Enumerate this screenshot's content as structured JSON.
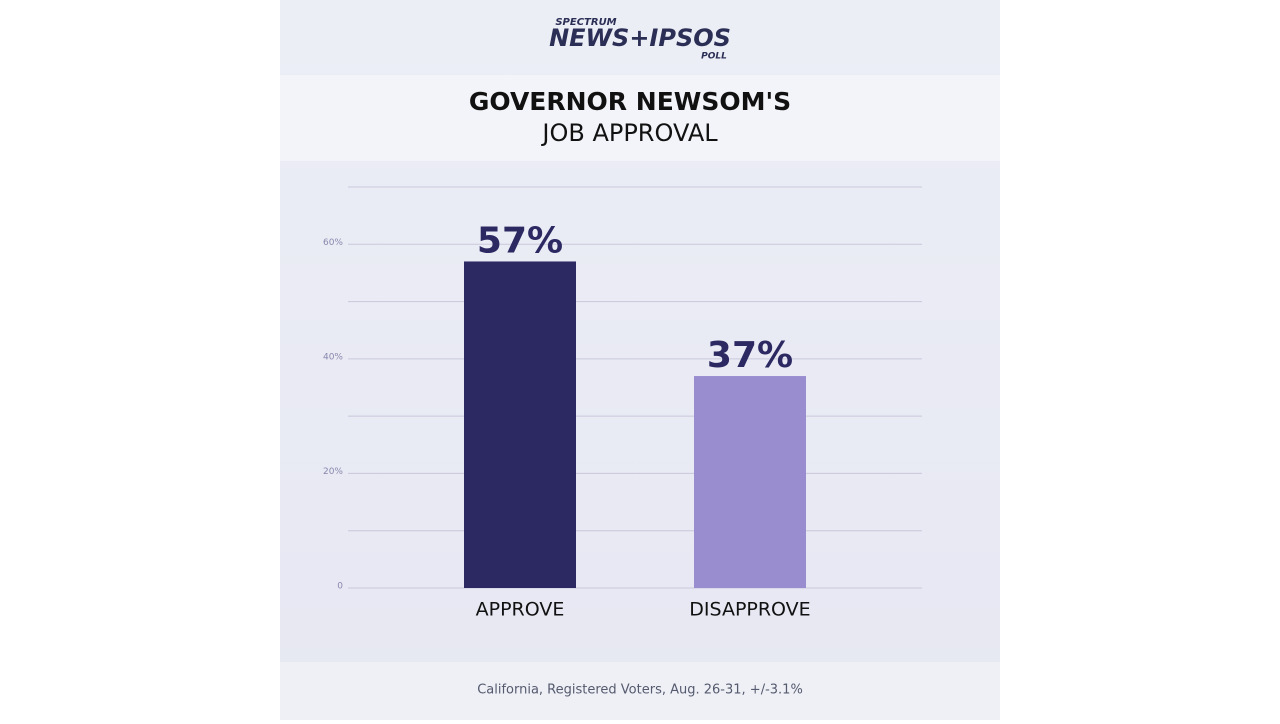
{
  "brand": {
    "top": "SPECTRUM",
    "main": "NEWS+IPSOS",
    "sub": "POLL"
  },
  "chart_data": {
    "type": "bar",
    "title": "GOVERNOR NEWSOM'S",
    "subtitle": "JOB APPROVAL",
    "categories": [
      "APPROVE",
      "DISAPPROVE"
    ],
    "values": [
      57,
      37
    ],
    "value_labels": [
      "57%",
      "37%"
    ],
    "colors": [
      "#2c2962",
      "#998dcf"
    ],
    "ylim": [
      0,
      70
    ],
    "yticks": [
      0,
      {
        "value": 20,
        "label": "20%"
      },
      {
        "value": 40,
        "label": "40%"
      },
      {
        "value": 60,
        "label": "60%"
      }
    ],
    "minor_yticks": [
      10,
      30,
      50,
      70
    ],
    "grid": true,
    "note": "California, Registered Voters, Aug. 26-31, +/-3.1%"
  }
}
